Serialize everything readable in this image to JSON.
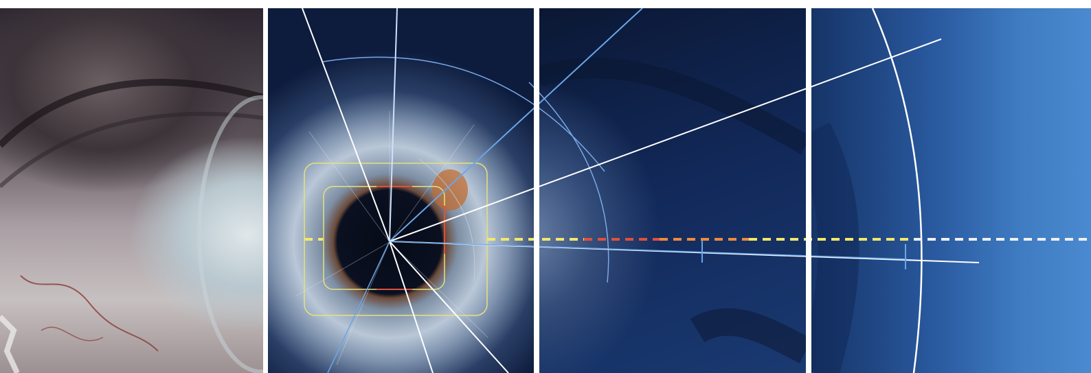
{
  "scene": {
    "panel_count": 4,
    "colors": {
      "page_background": "#ffffff",
      "scan_line_white": "#ffffff",
      "scan_line_blue": "#6aa6e8",
      "box_outer": "#e6e27a",
      "box_inner_red": "#e05040",
      "dash_yellow": "#f3e86a",
      "dash_orange": "#f08a3c",
      "dash_red": "#e0503a",
      "dash_white": "#f0f0f0"
    },
    "icons": [
      "eye-closeup",
      "iris-scan-target",
      "crosshair-lines"
    ]
  }
}
